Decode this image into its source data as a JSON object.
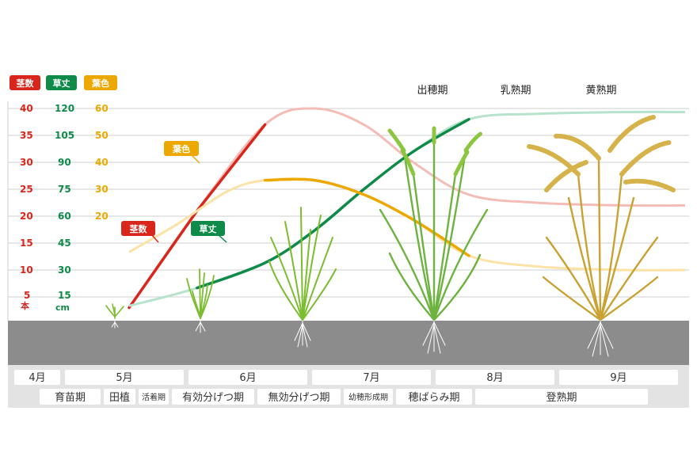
{
  "legend": {
    "stems": "茎数",
    "height": "草丈",
    "leaf_color": "葉色"
  },
  "axes": {
    "stems_ticks": [
      "40",
      "35",
      "30",
      "25",
      "20",
      "15",
      "10",
      "5"
    ],
    "stems_unit": "本",
    "height_ticks": [
      "120",
      "105",
      "90",
      "75",
      "60",
      "45",
      "30",
      "15"
    ],
    "height_unit": "cm",
    "leaf_ticks": [
      "60",
      "50",
      "40",
      "30",
      "20"
    ]
  },
  "labels": {
    "leaf_color_callout": "葉色",
    "stems_callout": "茎数",
    "height_callout": "草丈"
  },
  "top_stages": [
    "出穂期",
    "乳熟期",
    "黄熟期"
  ],
  "months": [
    "4月",
    "5月",
    "6月",
    "7月",
    "8月",
    "9月"
  ],
  "stages": [
    "育苗期",
    "田植",
    "活着期",
    "有効分げつ期",
    "無効分げつ期",
    "幼穂形成期",
    "穂ばらみ期",
    "登熟期"
  ],
  "colors": {
    "stems": "#d9261c",
    "height": "#0e8a49",
    "leaf_color": "#eda800",
    "ground": "#8c8c8c",
    "band": "#e3e3e3"
  },
  "chart_data": {
    "type": "line",
    "x_unit": "month",
    "series": [
      {
        "name": "茎数",
        "axis": "stems",
        "points": [
          [
            5.0,
            3
          ],
          [
            5.55,
            21
          ],
          [
            6.1,
            37
          ],
          [
            6.5,
            40
          ],
          [
            6.9,
            37
          ],
          [
            7.3,
            30
          ],
          [
            7.75,
            24
          ],
          [
            8.3,
            22.5
          ],
          [
            9.0,
            22
          ],
          [
            9.5,
            22
          ]
        ]
      },
      {
        "name": "草丈",
        "axis": "height",
        "points": [
          [
            5.0,
            10
          ],
          [
            5.55,
            20
          ],
          [
            6.1,
            34
          ],
          [
            6.5,
            52
          ],
          [
            6.9,
            75
          ],
          [
            7.3,
            96
          ],
          [
            7.75,
            114
          ],
          [
            8.3,
            117
          ],
          [
            9.0,
            118
          ],
          [
            9.5,
            118
          ]
        ]
      },
      {
        "name": "葉色",
        "axis": "leaf_color",
        "points": [
          [
            5.0,
            20
          ],
          [
            5.4,
            28
          ],
          [
            5.8,
            37
          ],
          [
            6.1,
            40
          ],
          [
            6.5,
            40
          ],
          [
            6.9,
            36
          ],
          [
            7.3,
            29
          ],
          [
            7.75,
            19
          ],
          [
            8.3,
            16
          ],
          [
            9.0,
            15
          ],
          [
            9.5,
            15
          ]
        ]
      }
    ],
    "axes": [
      {
        "id": "stems",
        "unit": "本",
        "ylim": [
          0,
          40
        ]
      },
      {
        "id": "height",
        "unit": "cm",
        "ylim": [
          0,
          120
        ]
      },
      {
        "id": "leaf_color",
        "ylim": [
          0,
          60
        ]
      }
    ]
  }
}
